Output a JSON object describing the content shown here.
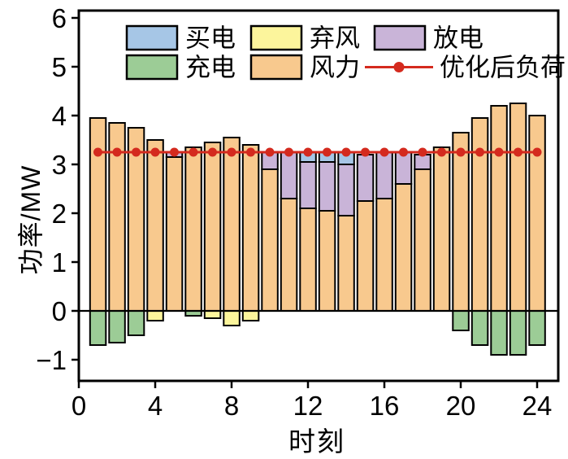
{
  "chart_data": {
    "type": "bar",
    "stacked": true,
    "title": "",
    "xlabel": "时刻",
    "ylabel": "功率/MW",
    "x_axis": {
      "ticks": [
        0,
        4,
        8,
        12,
        16,
        20,
        24
      ],
      "range": [
        0,
        25.1
      ]
    },
    "y_axis": {
      "ticks": [
        -1,
        0,
        1,
        2,
        3,
        4,
        5,
        6
      ],
      "range": [
        -1.43,
        6.15
      ]
    },
    "grid": false,
    "legend_position": "top-inside",
    "hours": [
      1,
      2,
      3,
      4,
      5,
      6,
      7,
      8,
      9,
      10,
      11,
      12,
      13,
      14,
      15,
      16,
      17,
      18,
      19,
      20,
      21,
      22,
      23,
      24
    ],
    "series": [
      {
        "name": "风力",
        "type": "bar",
        "color": "#f8c98e",
        "values": [
          3.95,
          3.85,
          3.75,
          3.5,
          3.15,
          3.35,
          3.45,
          3.55,
          3.4,
          2.9,
          2.3,
          2.1,
          2.05,
          1.95,
          2.25,
          2.3,
          2.6,
          2.9,
          3.35,
          3.65,
          3.95,
          4.2,
          4.25,
          4.0
        ]
      },
      {
        "name": "放电",
        "type": "bar",
        "color": "#c9b4d8",
        "values": [
          0,
          0,
          0,
          0,
          0.1,
          0,
          0,
          0,
          0,
          0.35,
          0.95,
          0.95,
          1.0,
          1.05,
          0.95,
          0.95,
          0.65,
          0.3,
          0,
          0,
          0,
          0,
          0,
          0
        ]
      },
      {
        "name": "买电",
        "type": "bar",
        "color": "#a6c6e6",
        "values": [
          0,
          0,
          0,
          0,
          0,
          0,
          0,
          0,
          0,
          0,
          0,
          0.2,
          0.2,
          0.25,
          0,
          0,
          0,
          0,
          0,
          0,
          0,
          0,
          0,
          0
        ]
      },
      {
        "name": "充电",
        "type": "bar",
        "color": "#9ccc96",
        "values": [
          -0.7,
          -0.65,
          -0.5,
          0,
          0,
          -0.1,
          0,
          0,
          0,
          0,
          0,
          0,
          0,
          0,
          0,
          0,
          0,
          0,
          0,
          -0.4,
          -0.7,
          -0.9,
          -0.9,
          -0.7
        ]
      },
      {
        "name": "弃风",
        "type": "bar",
        "color": "#fcf59c",
        "values": [
          0,
          0,
          0,
          -0.2,
          0,
          0,
          -0.15,
          -0.3,
          -0.2,
          0,
          0,
          0,
          0,
          0,
          0,
          0,
          0,
          0,
          0,
          0,
          0,
          0,
          0,
          0
        ]
      },
      {
        "name": "优化后负荷",
        "type": "line",
        "color": "#d42a1e",
        "values": [
          3.25,
          3.25,
          3.25,
          3.25,
          3.25,
          3.25,
          3.25,
          3.25,
          3.25,
          3.25,
          3.25,
          3.25,
          3.25,
          3.25,
          3.25,
          3.25,
          3.25,
          3.25,
          3.25,
          3.25,
          3.25,
          3.25,
          3.25,
          3.25
        ]
      }
    ],
    "legend_rows": [
      [
        "买电",
        "弃风",
        "放电"
      ],
      [
        "充电",
        "风力",
        "优化后负荷"
      ]
    ],
    "colors": {
      "axis": "#000000",
      "background": "#ffffff",
      "line_marker": "#d42a1e"
    }
  }
}
